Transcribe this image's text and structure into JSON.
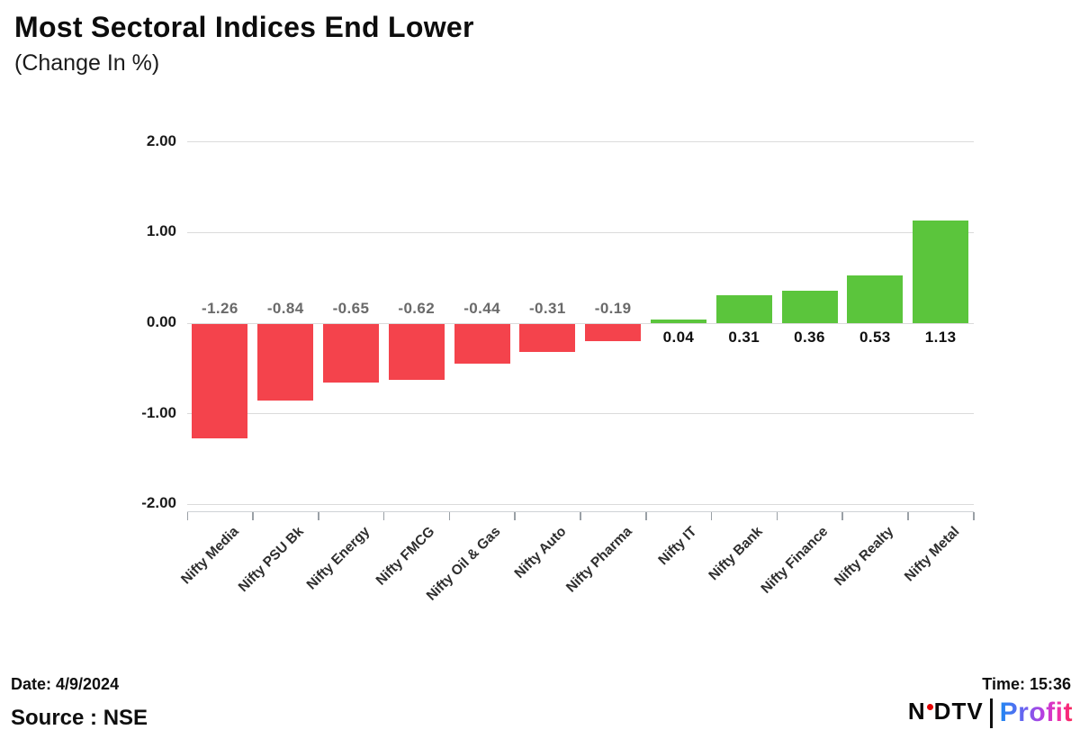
{
  "header": {
    "title": "Most Sectoral Indices End Lower",
    "subtitle": "(Change In %)"
  },
  "chart_data": {
    "type": "bar",
    "title": "Most Sectoral Indices End Lower",
    "subtitle": "(Change In %)",
    "categories": [
      "Nifty Media",
      "Nifty PSU Bk",
      "Nifty Energy",
      "Nifty FMCG",
      "Nifty Oil & Gas",
      "Nifty Auto",
      "Nifty Pharma",
      "Nifty IT",
      "Nifty Bank",
      "Nifty Finance",
      "Nifty Realty",
      "Nifty Metal"
    ],
    "values": [
      -1.26,
      -0.84,
      -0.65,
      -0.62,
      -0.44,
      -0.31,
      -0.19,
      0.04,
      0.31,
      0.36,
      0.53,
      1.13
    ],
    "value_labels": [
      "-1.26",
      "-0.84",
      "-0.65",
      "-0.62",
      "-0.44",
      "-0.31",
      "-0.19",
      "0.04",
      "0.31",
      "0.36",
      "0.53",
      "1.13"
    ],
    "yticks": [
      {
        "label": "2.00",
        "value": 2
      },
      {
        "label": "1.00",
        "value": 1
      },
      {
        "label": "0.00",
        "value": 0
      },
      {
        "label": "-1.00",
        "value": -1
      },
      {
        "label": "-2.00",
        "value": -2
      }
    ],
    "ylim": [
      -2,
      2
    ],
    "xlabel": "",
    "ylabel": "Change In %",
    "grid": true,
    "legend": false,
    "colors": {
      "positive": "#5bc53c",
      "negative": "#f4434c",
      "negative_value_label": "#6a6a6a",
      "positive_value_label": "#0f0f0f"
    }
  },
  "footer": {
    "date_label": "Date: 4/9/2024",
    "source_label": "Source : NSE",
    "time_label": "Time: 15:36",
    "logo": {
      "ndtv_n": "N",
      "ndtv_dtv": "DTV",
      "separator": "",
      "profit": "Profit",
      "brand_colors": {
        "ndtv_dot": "#e60000",
        "profit_gradient_start": "#1f88f2",
        "profit_gradient_end": "#f72757"
      }
    }
  }
}
